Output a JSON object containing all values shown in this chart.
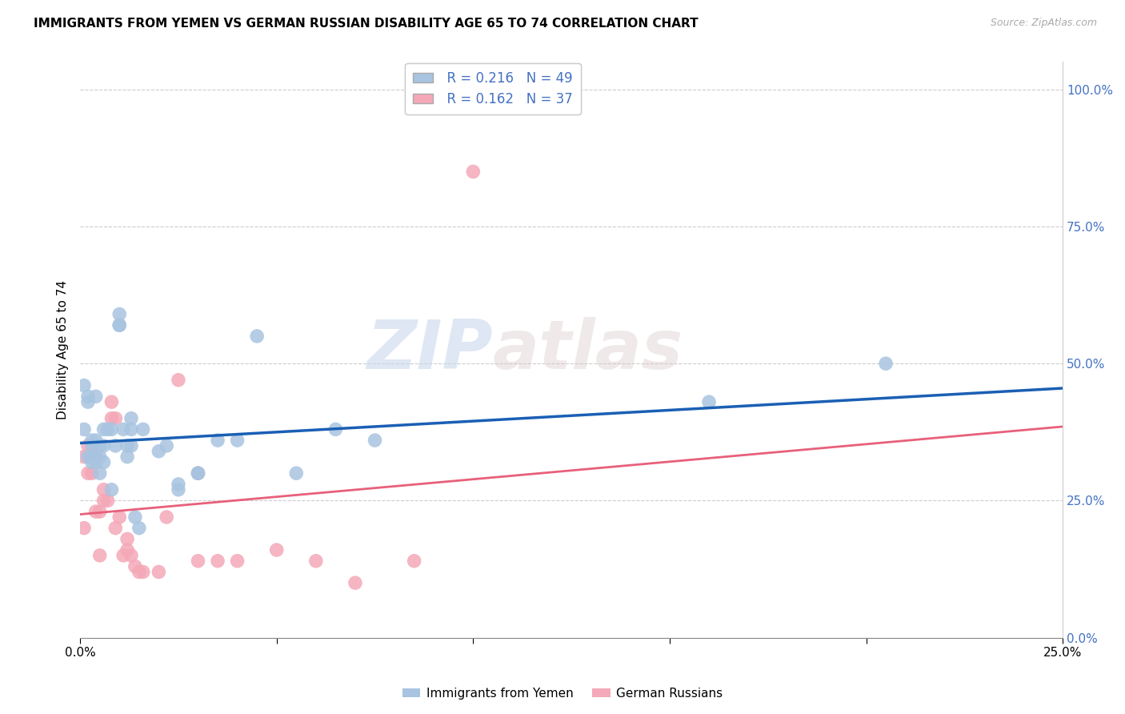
{
  "title": "IMMIGRANTS FROM YEMEN VS GERMAN RUSSIAN DISABILITY AGE 65 TO 74 CORRELATION CHART",
  "source": "Source: ZipAtlas.com",
  "ylabel": "Disability Age 65 to 74",
  "xlim": [
    0.0,
    0.25
  ],
  "ylim": [
    0.0,
    1.05
  ],
  "yticks": [
    0.0,
    0.25,
    0.5,
    0.75,
    1.0
  ],
  "ytick_labels": [
    "0.0%",
    "25.0%",
    "50.0%",
    "75.0%",
    "100.0%"
  ],
  "xticks": [
    0.0,
    0.05,
    0.1,
    0.15,
    0.2,
    0.25
  ],
  "xtick_labels": [
    "0.0%",
    "",
    "",
    "",
    "",
    "25.0%"
  ],
  "legend_labels": [
    "Immigrants from Yemen",
    "German Russians"
  ],
  "r_yemen": "0.216",
  "n_yemen": "49",
  "r_german": "0.162",
  "n_german": "37",
  "color_yemen": "#a8c4e0",
  "color_german": "#f4a8b8",
  "line_color_yemen": "#1a5fb4",
  "line_color_german": "#e8607a",
  "background_color": "#ffffff",
  "grid_color": "#cccccc",
  "watermark_text": "ZIP",
  "watermark_text2": "atlas",
  "trendline_yemen_y0": 0.355,
  "trendline_yemen_y1": 0.455,
  "trendline_german_y0": 0.225,
  "trendline_german_y1": 0.385,
  "yemen_x": [
    0.001,
    0.001,
    0.002,
    0.002,
    0.002,
    0.003,
    0.003,
    0.003,
    0.003,
    0.004,
    0.004,
    0.004,
    0.004,
    0.005,
    0.005,
    0.005,
    0.006,
    0.006,
    0.006,
    0.007,
    0.008,
    0.008,
    0.009,
    0.01,
    0.01,
    0.01,
    0.011,
    0.012,
    0.012,
    0.013,
    0.013,
    0.013,
    0.014,
    0.015,
    0.016,
    0.02,
    0.022,
    0.025,
    0.025,
    0.03,
    0.03,
    0.035,
    0.04,
    0.045,
    0.055,
    0.065,
    0.075,
    0.16,
    0.205
  ],
  "yemen_y": [
    0.46,
    0.38,
    0.44,
    0.43,
    0.33,
    0.35,
    0.36,
    0.33,
    0.32,
    0.36,
    0.44,
    0.33,
    0.32,
    0.35,
    0.33,
    0.3,
    0.35,
    0.38,
    0.32,
    0.38,
    0.38,
    0.27,
    0.35,
    0.59,
    0.57,
    0.57,
    0.38,
    0.35,
    0.33,
    0.4,
    0.38,
    0.35,
    0.22,
    0.2,
    0.38,
    0.34,
    0.35,
    0.28,
    0.27,
    0.3,
    0.3,
    0.36,
    0.36,
    0.55,
    0.3,
    0.38,
    0.36,
    0.43,
    0.5
  ],
  "german_x": [
    0.001,
    0.001,
    0.002,
    0.002,
    0.003,
    0.003,
    0.004,
    0.004,
    0.005,
    0.005,
    0.006,
    0.006,
    0.007,
    0.008,
    0.008,
    0.009,
    0.009,
    0.01,
    0.011,
    0.012,
    0.012,
    0.013,
    0.014,
    0.015,
    0.016,
    0.02,
    0.022,
    0.025,
    0.03,
    0.03,
    0.035,
    0.04,
    0.05,
    0.06,
    0.07,
    0.085,
    0.1
  ],
  "german_y": [
    0.33,
    0.2,
    0.35,
    0.3,
    0.3,
    0.35,
    0.33,
    0.23,
    0.23,
    0.15,
    0.27,
    0.25,
    0.25,
    0.4,
    0.43,
    0.2,
    0.4,
    0.22,
    0.15,
    0.16,
    0.18,
    0.15,
    0.13,
    0.12,
    0.12,
    0.12,
    0.22,
    0.47,
    0.14,
    0.3,
    0.14,
    0.14,
    0.16,
    0.14,
    0.1,
    0.14,
    0.85
  ]
}
